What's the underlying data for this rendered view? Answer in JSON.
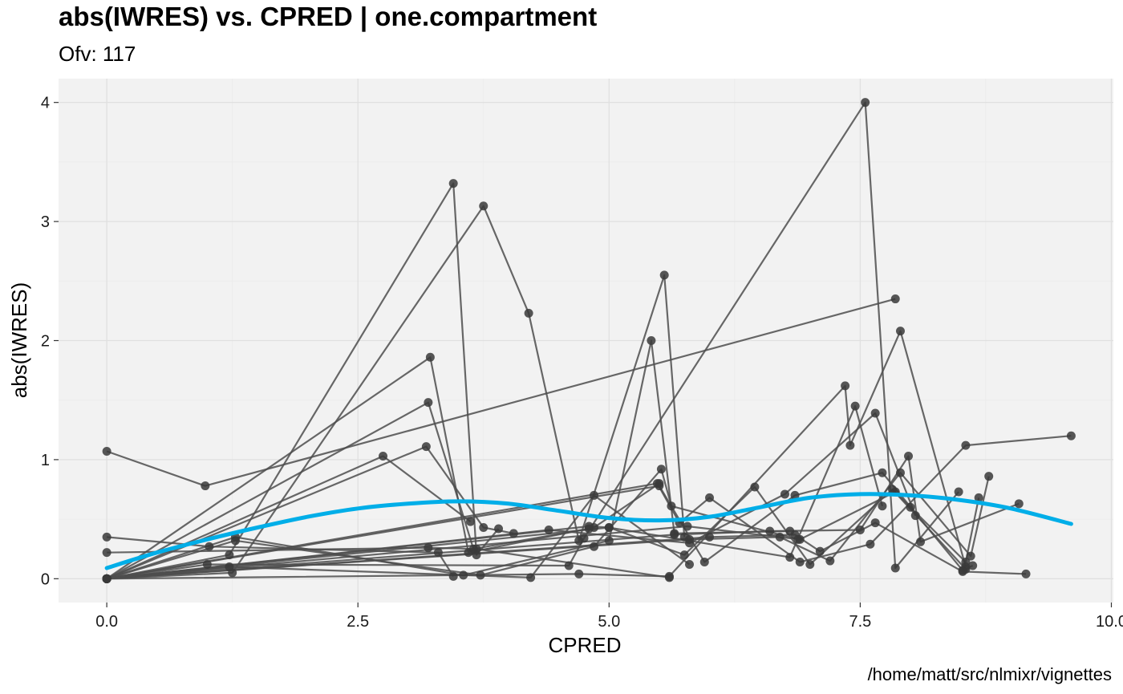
{
  "chart_data": {
    "type": "scatter",
    "title": "abs(IWRES) vs. CPRED | one.compartment",
    "subtitle": "Ofv: 117",
    "caption": "/home/matt/src/nlmixr/vignettes",
    "xlabel": "CPRED",
    "ylabel": "abs(IWRES)",
    "xlim": [
      -0.48,
      10.02
    ],
    "ylim": [
      -0.2,
      4.2
    ],
    "x_ticks": [
      0.0,
      2.5,
      5.0,
      7.5,
      10.0
    ],
    "x_tick_labels": [
      "0.0",
      "2.5",
      "5.0",
      "7.5",
      "10.0"
    ],
    "y_ticks": [
      0,
      1,
      2,
      3,
      4
    ],
    "y_tick_labels": [
      "0",
      "1",
      "2",
      "3",
      "4"
    ],
    "grid": true,
    "colors": {
      "panel_bg": "#f2f2f2",
      "grid_major": "#e0e0e0",
      "grid_minor": "#ebebeb",
      "points": "#3a3a3a",
      "lines": "#4d4d4d",
      "smooth": "#00aee8"
    },
    "series": [
      {
        "x": [
          0,
          0.98,
          7.85
        ],
        "y": [
          1.07,
          0.78,
          2.35
        ]
      },
      {
        "x": [
          0,
          3.22,
          3.6,
          4.85,
          5.5
        ],
        "y": [
          0,
          1.86,
          0.22,
          0.43,
          0.8
        ]
      },
      {
        "x": [
          0,
          3.2,
          3.68,
          5.6
        ],
        "y": [
          0.22,
          0.26,
          0.25,
          0.01
        ]
      },
      {
        "x": [
          0,
          1.02,
          3.3,
          3.45
        ],
        "y": [
          0.35,
          0.27,
          0.22,
          0.02
        ]
      },
      {
        "x": [
          0,
          1.22,
          3.45,
          3.68,
          3.9
        ],
        "y": [
          0,
          0.2,
          3.32,
          0.2,
          0.42
        ]
      },
      {
        "x": [
          0,
          1.25,
          3.75,
          4.2,
          4.7,
          5.55,
          5.75
        ],
        "y": [
          0,
          0.05,
          3.13,
          2.23,
          0.32,
          2.55,
          0.35
        ]
      },
      {
        "x": [
          0,
          2.75,
          3.62
        ],
        "y": [
          0,
          1.03,
          0.48
        ]
      },
      {
        "x": [
          0,
          3.18,
          3.75,
          4.05
        ],
        "y": [
          0,
          1.11,
          0.43,
          0.38
        ]
      },
      {
        "x": [
          0,
          3.2,
          3.65,
          4.8
        ],
        "y": [
          0,
          1.48,
          0.25,
          0.42
        ]
      },
      {
        "x": [
          0,
          1.28,
          3.55,
          5.0,
          5.42,
          5.65,
          6.8
        ],
        "y": [
          0,
          0.35,
          0.03,
          0.32,
          2.0,
          0.38,
          0.4
        ]
      },
      {
        "x": [
          0,
          1.28,
          3.72,
          4.85,
          5.52,
          5.62,
          6.88
        ],
        "y": [
          0,
          0.32,
          0.03,
          0.27,
          0.92,
          0.61,
          0.33
        ]
      },
      {
        "x": [
          0,
          1.22,
          4.22,
          4.85,
          5.8
        ],
        "y": [
          0,
          0.1,
          0.01,
          0.7,
          0.12
        ]
      },
      {
        "x": [
          0,
          1.0,
          4.6,
          4.75,
          7.55,
          7.85,
          8.48
        ],
        "y": [
          0,
          0.12,
          0.11,
          0.34,
          4.0,
          0.09,
          0.73
        ]
      },
      {
        "x": [
          0,
          4.7,
          5.6,
          7.35,
          7.4,
          7.9,
          8.55
        ],
        "y": [
          0,
          0.04,
          0.02,
          1.62,
          1.12,
          2.08,
          0.1
        ]
      },
      {
        "x": [
          0,
          4.8,
          5.0,
          6.8,
          7.45,
          7.72
        ],
        "y": [
          0,
          0.44,
          0.43,
          0.18,
          1.45,
          0.61
        ]
      },
      {
        "x": [
          0,
          4.4,
          5.8,
          6.75,
          7.65,
          8.05
        ],
        "y": [
          0,
          0.41,
          0.3,
          0.71,
          1.39,
          0.53
        ]
      },
      {
        "x": [
          0,
          5.0,
          5.75,
          6.45,
          7.0,
          7.82,
          8.55
        ],
        "y": [
          0,
          0.43,
          0.2,
          0.77,
          0.12,
          0.75,
          0.08
        ]
      },
      {
        "x": [
          0,
          5.5,
          5.95,
          6.85,
          7.72,
          8.52,
          8.62
        ],
        "y": [
          0,
          0.78,
          0.14,
          0.7,
          0.89,
          0.07,
          0.11
        ]
      },
      {
        "x": [
          0,
          5.48,
          5.7,
          6.0,
          6.9,
          7.6,
          8.55,
          9.6
        ],
        "y": [
          0,
          0.8,
          0.47,
          0.68,
          0.14,
          0.29,
          1.12,
          1.2
        ]
      },
      {
        "x": [
          0,
          5.8,
          6.7,
          7.2,
          7.9,
          8.6,
          8.78
        ],
        "y": [
          0,
          0.33,
          0.35,
          0.15,
          0.89,
          0.19,
          0.86
        ]
      },
      {
        "x": [
          0,
          6.0,
          6.85,
          7.1,
          7.65,
          8.52,
          9.15
        ],
        "y": [
          0,
          0.35,
          0.37,
          0.23,
          0.47,
          0.06,
          0.04
        ]
      },
      {
        "x": [
          0,
          5.65,
          6.6,
          7.5,
          7.98,
          8.1,
          9.08
        ],
        "y": [
          0,
          0.37,
          0.4,
          0.41,
          1.03,
          0.31,
          0.63
        ]
      },
      {
        "x": [
          0,
          5.78,
          6.9,
          7.85,
          8.0,
          8.55,
          8.68
        ],
        "y": [
          0,
          0.44,
          0.33,
          0.73,
          0.6,
          0.14,
          0.68
        ]
      }
    ],
    "smooth": {
      "x": [
        0,
        0.5,
        1.0,
        1.5,
        2.0,
        2.5,
        3.0,
        3.5,
        4.0,
        4.5,
        5.0,
        5.5,
        6.0,
        6.5,
        7.0,
        7.5,
        8.0,
        8.5,
        9.0,
        9.6
      ],
      "y": [
        0.09,
        0.22,
        0.33,
        0.43,
        0.52,
        0.59,
        0.63,
        0.65,
        0.63,
        0.57,
        0.51,
        0.49,
        0.52,
        0.6,
        0.68,
        0.71,
        0.7,
        0.66,
        0.59,
        0.46
      ]
    }
  }
}
